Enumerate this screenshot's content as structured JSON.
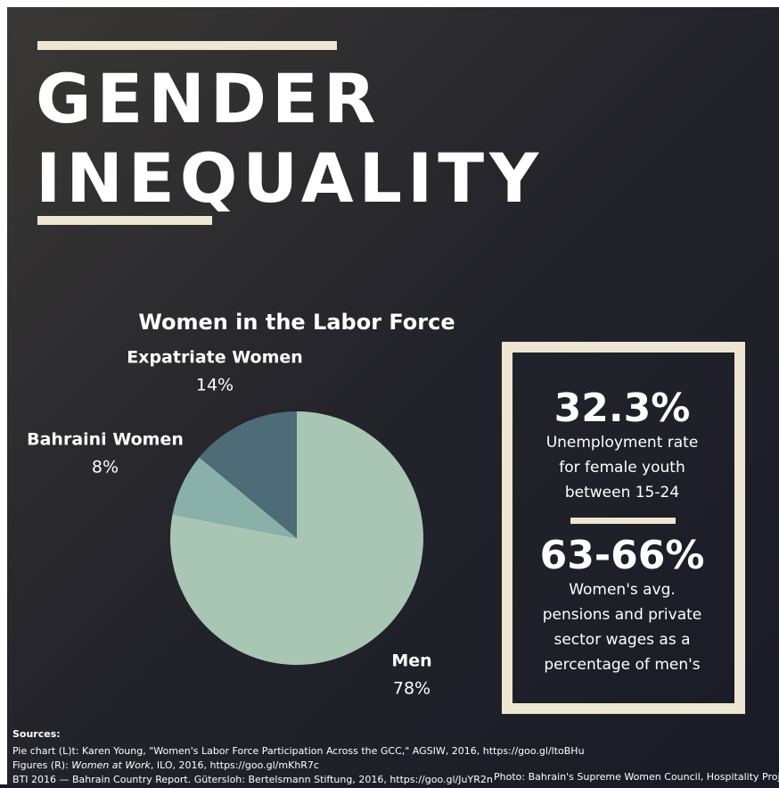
{
  "header": {
    "title_lines": [
      "GENDER",
      "INEQUALITY"
    ]
  },
  "chart_data": {
    "type": "pie",
    "title": "Women in the Labor Force",
    "categories": [
      "Men",
      "Bahraini Women",
      "Expatriate Women"
    ],
    "values": [
      78,
      8,
      14
    ],
    "value_labels": [
      "78%",
      "8%",
      "14%"
    ],
    "colors": [
      "#a9c6b5",
      "#8ab0aa",
      "#4e6b78"
    ]
  },
  "stats": [
    {
      "value": "32.3%",
      "lines": [
        "Unemployment rate",
        "for female youth",
        "between 15-24"
      ]
    },
    {
      "value": "63-66%",
      "lines": [
        "Women's avg.",
        "pensions and private",
        "sector wages as a",
        "percentage of men's"
      ]
    }
  ],
  "sources": {
    "heading": "Sources:",
    "line1": "Pie chart (L)t: Karen Young, \"Women's Labor Force Participation Across the GCC,\" AGSIW, 2016, https://goo.gl/ltoBHu",
    "line2_prefix": "Figures (R): ",
    "line2_italic": "Women at Work",
    "line2_suffix": ", ILO, 2016, https://goo.gl/mKhR7c",
    "line3": "BTI 2016 — Bahrain Country Report. Gütersloh: Bertelsmann Stiftung, 2016, https://goo.gl/JuYR2n",
    "credit": "Photo: Bahrain's Supreme Women Council, Hospitality Project"
  }
}
